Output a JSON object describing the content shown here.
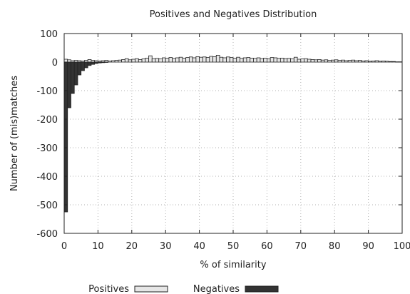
{
  "chart_data": {
    "type": "bar",
    "title": "Positives and Negatives Distribution",
    "xlabel": "% of similarity",
    "ylabel": "Number of (mis)matches",
    "xlim": [
      0,
      100
    ],
    "ylim": [
      -600,
      100
    ],
    "xticks": [
      0,
      10,
      20,
      30,
      40,
      50,
      60,
      70,
      80,
      90,
      100
    ],
    "yticks": [
      100,
      0,
      -100,
      -200,
      -300,
      -400,
      -500,
      -600
    ],
    "grid": true,
    "legend_position": "bottom",
    "series": [
      {
        "name": "Positives",
        "color": "#e6e6e6",
        "x": [
          1,
          2,
          3,
          4,
          5,
          6,
          7,
          8,
          9,
          10,
          11,
          12,
          13,
          14,
          15,
          16,
          17,
          18,
          19,
          20,
          21,
          22,
          23,
          24,
          25,
          26,
          27,
          28,
          29,
          30,
          31,
          32,
          33,
          34,
          35,
          36,
          37,
          38,
          39,
          40,
          41,
          42,
          43,
          44,
          45,
          46,
          47,
          48,
          49,
          50,
          51,
          52,
          53,
          54,
          55,
          56,
          57,
          58,
          59,
          60,
          61,
          62,
          63,
          64,
          65,
          66,
          67,
          68,
          69,
          70,
          71,
          72,
          73,
          74,
          75,
          76,
          77,
          78,
          79,
          80,
          81,
          82,
          83,
          84,
          85,
          86,
          87,
          88,
          89,
          90,
          91,
          92,
          93,
          94,
          95,
          96,
          97,
          98,
          99,
          100
        ],
        "values": [
          10,
          8,
          5,
          6,
          5,
          4,
          6,
          9,
          6,
          5,
          4,
          5,
          6,
          4,
          5,
          6,
          7,
          9,
          12,
          8,
          10,
          12,
          9,
          11,
          14,
          22,
          12,
          13,
          11,
          15,
          14,
          16,
          13,
          15,
          17,
          14,
          16,
          18,
          15,
          19,
          17,
          18,
          16,
          20,
          19,
          24,
          17,
          15,
          18,
          16,
          14,
          17,
          13,
          15,
          16,
          14,
          13,
          15,
          12,
          14,
          11,
          16,
          15,
          13,
          14,
          12,
          13,
          11,
          17,
          10,
          11,
          12,
          10,
          9,
          8,
          9,
          7,
          8,
          6,
          7,
          8,
          6,
          7,
          5,
          6,
          7,
          5,
          6,
          4,
          5,
          3,
          4,
          5,
          3,
          4,
          3,
          2,
          2,
          1,
          1
        ]
      },
      {
        "name": "Negatives",
        "color": "#333333",
        "x": [
          1,
          2,
          3,
          4,
          5,
          6,
          7,
          8,
          9,
          10,
          11,
          12,
          13
        ],
        "values": [
          -525,
          -160,
          -110,
          -80,
          -45,
          -30,
          -20,
          -12,
          -8,
          -5,
          -3,
          -2,
          -1
        ]
      }
    ]
  }
}
